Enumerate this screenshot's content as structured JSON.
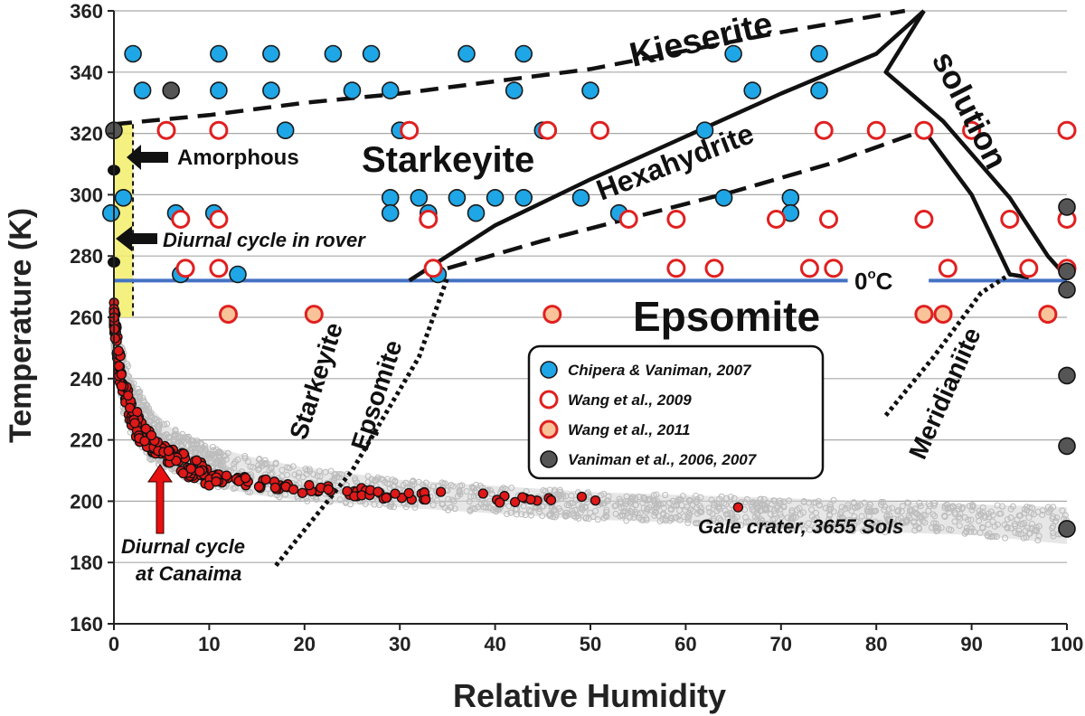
{
  "chart_data": {
    "type": "scatter",
    "title": "",
    "xlabel": "Relative Humidity",
    "ylabel": "Temperature (K)",
    "xlim": [
      0,
      100
    ],
    "ylim": [
      160,
      360
    ],
    "xticks": [
      0,
      10,
      20,
      30,
      40,
      50,
      60,
      70,
      80,
      90,
      100
    ],
    "yticks": [
      160,
      180,
      200,
      220,
      240,
      260,
      280,
      300,
      320,
      340,
      360
    ],
    "grid": "horizontal",
    "legend_position": "center-right",
    "colors": {
      "chipera": "#1ea6e6",
      "wang2009": "#e02020",
      "wang2011_fill": "#f9c39a",
      "vaniman": "#555555",
      "gale_grey": "#bdbdbd",
      "canaima": "#e01818",
      "zero_line": "#4472c4",
      "amorphous_band": "#f3ef6a"
    },
    "series": [
      {
        "name": "Chipera & Vaniman, 2007",
        "marker": "filled-blue-circle",
        "points": [
          [
            -0.3,
            294
          ],
          [
            1,
            299
          ],
          [
            2,
            346
          ],
          [
            3,
            334
          ],
          [
            6.5,
            294
          ],
          [
            10.5,
            294
          ],
          [
            11,
            346
          ],
          [
            11,
            334
          ],
          [
            16.5,
            346
          ],
          [
            16.5,
            334
          ],
          [
            18,
            321
          ],
          [
            23,
            346
          ],
          [
            25,
            334
          ],
          [
            27,
            346
          ],
          [
            29,
            334
          ],
          [
            29,
            299
          ],
          [
            29,
            294
          ],
          [
            30,
            321
          ],
          [
            32,
            299
          ],
          [
            33,
            294
          ],
          [
            34,
            274
          ],
          [
            36,
            299
          ],
          [
            37,
            346
          ],
          [
            38,
            294
          ],
          [
            40,
            299
          ],
          [
            42,
            334
          ],
          [
            43,
            346
          ],
          [
            43,
            299
          ],
          [
            45,
            321
          ],
          [
            49,
            299
          ],
          [
            50,
            334
          ],
          [
            53,
            294
          ],
          [
            62,
            321
          ],
          [
            64,
            299
          ],
          [
            65,
            346
          ],
          [
            67,
            334
          ],
          [
            71,
            299
          ],
          [
            71,
            294
          ],
          [
            74,
            346
          ],
          [
            74,
            334
          ],
          [
            74.5,
            321
          ],
          [
            13,
            274
          ],
          [
            7,
            274
          ]
        ]
      },
      {
        "name": "Wang et al., 2009",
        "marker": "open-red-circle",
        "points": [
          [
            5.5,
            321
          ],
          [
            11,
            321
          ],
          [
            31,
            321
          ],
          [
            45.5,
            321
          ],
          [
            51,
            321
          ],
          [
            7,
            292
          ],
          [
            11,
            292
          ],
          [
            33,
            292
          ],
          [
            54,
            292
          ],
          [
            59,
            292
          ],
          [
            69.5,
            292
          ],
          [
            75,
            292
          ],
          [
            85,
            292
          ],
          [
            94,
            292
          ],
          [
            100,
            292
          ],
          [
            7.5,
            276
          ],
          [
            11,
            276
          ],
          [
            33.5,
            276
          ],
          [
            59,
            276
          ],
          [
            63,
            276
          ],
          [
            73,
            276
          ],
          [
            75.5,
            276
          ],
          [
            87.5,
            276
          ],
          [
            96,
            276
          ],
          [
            100,
            276
          ],
          [
            74.5,
            321
          ],
          [
            80,
            321
          ],
          [
            85,
            321
          ],
          [
            90,
            321
          ],
          [
            100,
            321
          ]
        ]
      },
      {
        "name": "Wang et al., 2011",
        "marker": "filled-peach-circle-red-edge",
        "points": [
          [
            12,
            261
          ],
          [
            21,
            261
          ],
          [
            46,
            261
          ],
          [
            85,
            261
          ],
          [
            87,
            261
          ],
          [
            98,
            261
          ]
        ]
      },
      {
        "name": "Vaniman et al., 2006, 2007",
        "marker": "filled-grey-circle",
        "points": [
          [
            6,
            334
          ],
          [
            0,
            321
          ],
          [
            100,
            296
          ],
          [
            100,
            275
          ],
          [
            100,
            269
          ],
          [
            100,
            241
          ],
          [
            100,
            218
          ],
          [
            100,
            191
          ]
        ]
      },
      {
        "name": "Gale crater, 3655 Sols",
        "marker": "small-grey-circle-cloud",
        "points": []
      },
      {
        "name": "Diurnal cycle at Canaima",
        "marker": "red-dot-black-edge",
        "points": []
      }
    ],
    "phase_boundaries": {
      "kieserite_dashed": [
        [
          0,
          323
        ],
        [
          10,
          326
        ],
        [
          20,
          330
        ],
        [
          30,
          333
        ],
        [
          40,
          337
        ],
        [
          50,
          341
        ],
        [
          60,
          347
        ],
        [
          70,
          353
        ],
        [
          83,
          360
        ]
      ],
      "starkeyite_hexahydrite": [
        [
          31,
          272
        ],
        [
          40,
          290
        ],
        [
          50,
          305
        ],
        [
          60,
          319
        ],
        [
          70,
          333
        ],
        [
          80,
          346
        ],
        [
          85,
          360
        ]
      ],
      "hexahydrite_epsomite_dashed": [
        [
          35,
          276
        ],
        [
          45,
          285
        ],
        [
          55,
          293
        ],
        [
          65,
          301
        ],
        [
          75,
          310
        ],
        [
          85,
          321
        ]
      ],
      "deliquescence_upper": [
        [
          85,
          360
        ],
        [
          81,
          340
        ],
        [
          87,
          324
        ],
        [
          94,
          299
        ],
        [
          98,
          280
        ],
        [
          100,
          273
        ]
      ],
      "deliquescence_lower": [
        [
          85,
          321
        ],
        [
          90,
          300
        ],
        [
          94,
          274
        ],
        [
          96,
          273
        ]
      ],
      "starkeyite_epsomite_dotted": [
        [
          17,
          179
        ],
        [
          25,
          210
        ],
        [
          32,
          247
        ],
        [
          35,
          273
        ]
      ],
      "meridianiite_dotted": [
        [
          81,
          228
        ],
        [
          86,
          247
        ],
        [
          91,
          268
        ],
        [
          94,
          274
        ]
      ]
    },
    "gale_envelope": {
      "upper": [
        [
          0,
          262
        ],
        [
          1,
          249
        ],
        [
          2,
          239
        ],
        [
          4,
          230
        ],
        [
          6,
          224
        ],
        [
          10,
          218
        ],
        [
          15,
          214
        ],
        [
          20,
          211
        ],
        [
          30,
          207
        ],
        [
          40,
          205
        ],
        [
          50,
          203
        ],
        [
          60,
          202
        ],
        [
          70,
          201
        ],
        [
          80,
          200
        ],
        [
          90,
          199
        ],
        [
          100,
          198
        ]
      ],
      "lower": [
        [
          0,
          250
        ],
        [
          0.5,
          238
        ],
        [
          1,
          228
        ],
        [
          2,
          220
        ],
        [
          4,
          213
        ],
        [
          7,
          208
        ],
        [
          10,
          205
        ],
        [
          15,
          202
        ],
        [
          20,
          200
        ],
        [
          30,
          198
        ],
        [
          40,
          196
        ],
        [
          50,
          194
        ],
        [
          60,
          193
        ],
        [
          70,
          191
        ],
        [
          80,
          190
        ],
        [
          90,
          189
        ],
        [
          100,
          186
        ]
      ]
    },
    "canaima_trend": [
      [
        0,
        262
      ],
      [
        0.2,
        255
      ],
      [
        0.4,
        248
      ],
      [
        0.6,
        244
      ],
      [
        1,
        237
      ],
      [
        1.5,
        231
      ],
      [
        2,
        227
      ],
      [
        3,
        222
      ],
      [
        4,
        219
      ],
      [
        5,
        216
      ],
      [
        6,
        214
      ],
      [
        8,
        211
      ],
      [
        10,
        208
      ],
      [
        12,
        207
      ],
      [
        15,
        206
      ],
      [
        20,
        204
      ],
      [
        25,
        203
      ],
      [
        30,
        202
      ],
      [
        35,
        201.5
      ],
      [
        40,
        201
      ],
      [
        45,
        200.5
      ],
      [
        50,
        200
      ],
      [
        54,
        200
      ]
    ],
    "reference_line": {
      "label": "0",
      "label_sup": "o",
      "label_unit": "C",
      "y": 272
    },
    "amorphous_band": {
      "x": [
        0,
        2
      ],
      "y": [
        260,
        323
      ]
    },
    "regions": {
      "kieserite": "Kieserite",
      "starkeyite": "Starkeyite",
      "hexahydrite": "Hexahydrite",
      "epsomite": "Epsomite",
      "solution": "solution",
      "starkeyite_line": "Starkeyite",
      "epsomite_line": "Epsomite",
      "meridianiite": "Meridianiite"
    },
    "annotations": {
      "amorphous": "Amorphous",
      "diurnal_rover": "Diurnal cycle in rover",
      "canaima_line1": "Diurnal cycle",
      "canaima_line2": "at Canaima",
      "gale": "Gale crater, 3655 Sols"
    }
  }
}
